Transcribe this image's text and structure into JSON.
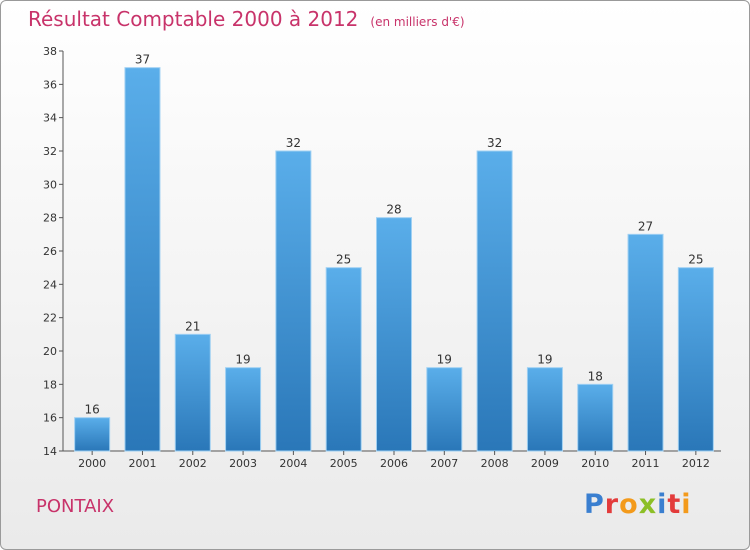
{
  "header": {
    "title": "Résultat Comptable 2000 à 2012",
    "subtitle": "(en milliers d'€)"
  },
  "footer": {
    "commune": "PONTAIX",
    "logo_letters": [
      "P",
      "r",
      "o",
      "x",
      "i",
      "t",
      "i"
    ],
    "logo_colors": [
      "#3a7fd0",
      "#e33b3b",
      "#f39a1b",
      "#8cbf26",
      "#3a7fd0",
      "#e33b3b",
      "#f39a1b"
    ]
  },
  "chart_data": {
    "type": "bar",
    "title": "Résultat Comptable 2000 à 2012",
    "subtitle": "(en milliers d'€)",
    "categories": [
      "2000",
      "2001",
      "2002",
      "2003",
      "2004",
      "2005",
      "2006",
      "2007",
      "2008",
      "2009",
      "2010",
      "2011",
      "2012"
    ],
    "values": [
      16,
      37,
      21,
      19,
      32,
      25,
      28,
      19,
      32,
      19,
      18,
      27,
      25
    ],
    "ylim": [
      14,
      38
    ],
    "yticks": [
      14,
      16,
      18,
      20,
      22,
      24,
      26,
      28,
      30,
      32,
      34,
      36,
      38
    ],
    "grid": false,
    "bar_color_top": "#5aaeea",
    "bar_color_bottom": "#2a77b8"
  }
}
